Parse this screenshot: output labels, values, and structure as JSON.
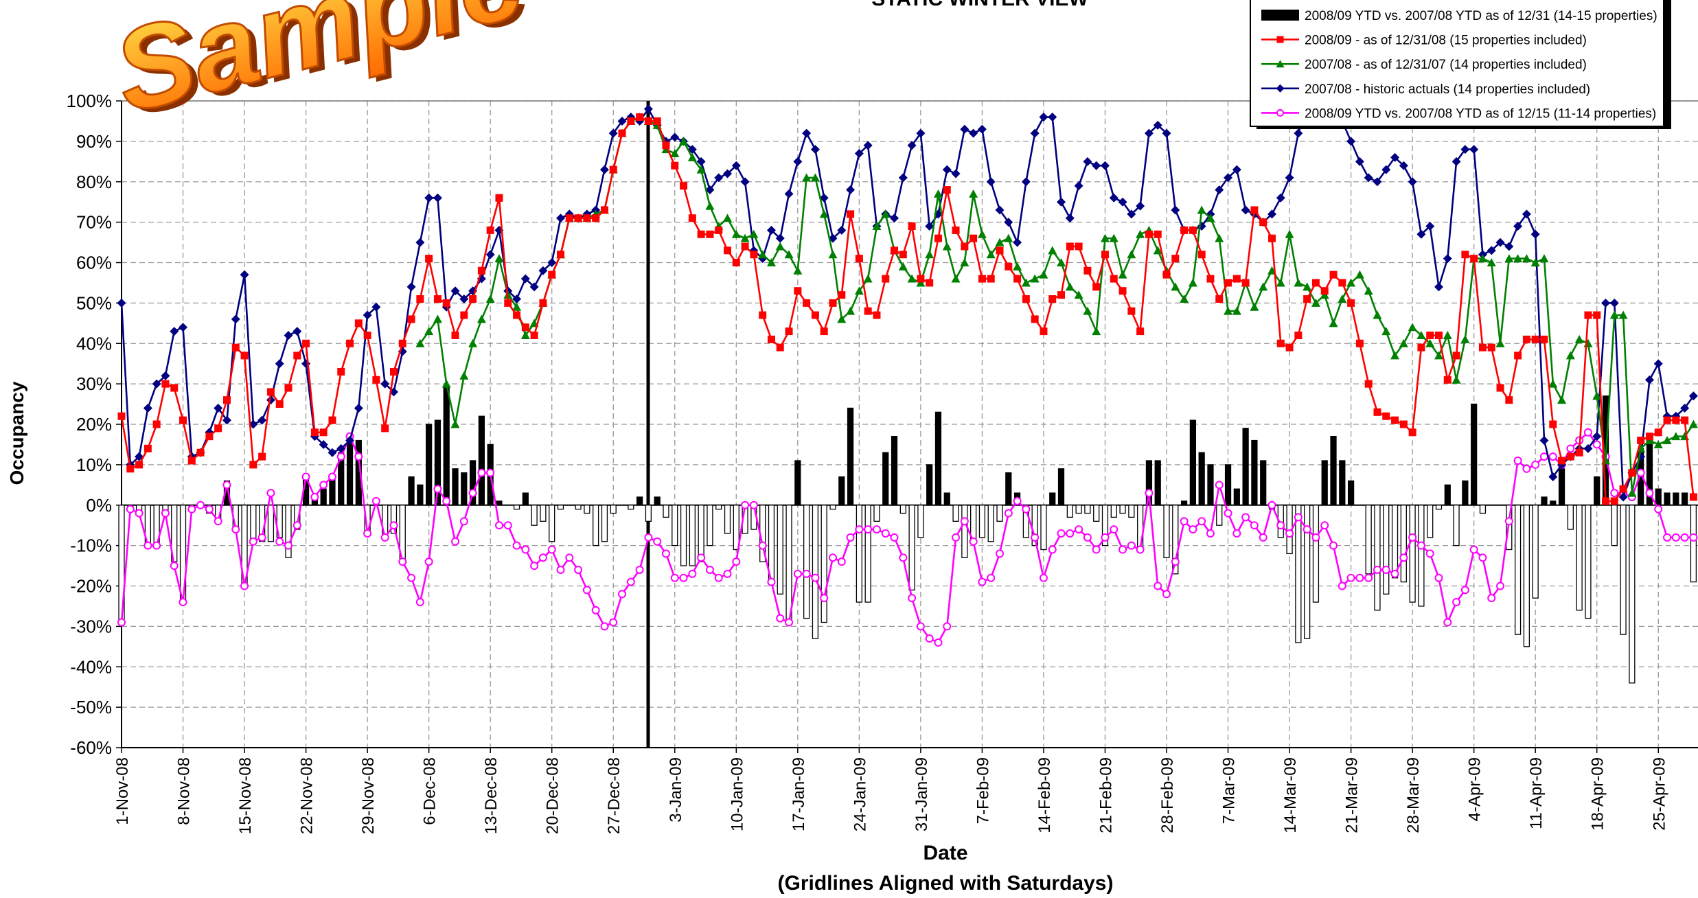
{
  "chart_data": {
    "type": "combo",
    "title": "STATIC WINTER VIEW",
    "watermark": "Sample",
    "y_label": "Occupancy",
    "x_label": "Date",
    "x_sublabel": "(Gridlines Aligned with Saturdays)",
    "ylim": [
      -60,
      100
    ],
    "yticks": [
      {
        "value": -60,
        "label": "-60%"
      },
      {
        "value": -50,
        "label": "-50%"
      },
      {
        "value": -40,
        "label": "-40%"
      },
      {
        "value": -30,
        "label": "-30%"
      },
      {
        "value": -20,
        "label": "-20%"
      },
      {
        "value": -10,
        "label": "-10%"
      },
      {
        "value": 0,
        "label": "0%"
      },
      {
        "value": 10,
        "label": "10%"
      },
      {
        "value": 20,
        "label": "20%"
      },
      {
        "value": 30,
        "label": "30%"
      },
      {
        "value": 40,
        "label": "40%"
      },
      {
        "value": 50,
        "label": "50%"
      },
      {
        "value": 60,
        "label": "60%"
      },
      {
        "value": 70,
        "label": "70%"
      },
      {
        "value": 80,
        "label": "80%"
      },
      {
        "value": 90,
        "label": "90%"
      },
      {
        "value": 100,
        "label": "100%"
      }
    ],
    "grid": true,
    "legend": "top-right",
    "categories": [
      "1-Nov-08",
      null,
      null,
      null,
      null,
      null,
      null,
      "8-Nov-08",
      null,
      null,
      null,
      null,
      null,
      null,
      "15-Nov-08",
      null,
      null,
      null,
      null,
      null,
      null,
      "22-Nov-08",
      null,
      null,
      null,
      null,
      null,
      null,
      "29-Nov-08",
      null,
      null,
      null,
      null,
      null,
      null,
      "6-Dec-08",
      null,
      null,
      null,
      null,
      null,
      null,
      "13-Dec-08",
      null,
      null,
      null,
      null,
      null,
      null,
      "20-Dec-08",
      null,
      null,
      null,
      null,
      null,
      null,
      "27-Dec-08",
      null,
      null,
      null,
      null,
      null,
      null,
      "3-Jan-09",
      null,
      null,
      null,
      null,
      null,
      null,
      "10-Jan-09",
      null,
      null,
      null,
      null,
      null,
      null,
      "17-Jan-09",
      null,
      null,
      null,
      null,
      null,
      null,
      "24-Jan-09",
      null,
      null,
      null,
      null,
      null,
      null,
      "31-Jan-09",
      null,
      null,
      null,
      null,
      null,
      null,
      "7-Feb-09",
      null,
      null,
      null,
      null,
      null,
      null,
      "14-Feb-09",
      null,
      null,
      null,
      null,
      null,
      null,
      "21-Feb-09",
      null,
      null,
      null,
      null,
      null,
      null,
      "28-Feb-09",
      null,
      null,
      null,
      null,
      null,
      null,
      "7-Mar-09",
      null,
      null,
      null,
      null,
      null,
      null,
      "14-Mar-09",
      null,
      null,
      null,
      null,
      null,
      null,
      "21-Mar-09",
      null,
      null,
      null,
      null,
      null,
      null,
      "28-Mar-09",
      null,
      null,
      null,
      null,
      null,
      null,
      "4-Apr-09",
      null,
      null,
      null,
      null,
      null,
      null,
      "11-Apr-09",
      null,
      null,
      null,
      null,
      null,
      null,
      "18-Apr-09",
      null,
      null,
      null,
      null,
      null,
      null,
      "25-Apr-09",
      null,
      null,
      null,
      null
    ],
    "series": [
      {
        "name": "2008/09 YTD vs. 2007/08 YTD as of 12/31 (14-15 properties)",
        "type": "bar",
        "color": "#000000",
        "invert_if_negative": true,
        "values": [
          -29,
          -1,
          -2,
          -10,
          -10,
          -2,
          -14,
          -24,
          -1,
          0,
          -2,
          -4,
          6,
          -6,
          -20,
          -9,
          -9,
          -9,
          -8,
          -13,
          -6,
          7,
          2,
          4,
          7,
          13,
          17,
          16,
          -7,
          0,
          -8,
          -7,
          -14,
          7,
          5,
          20,
          21,
          29,
          9,
          8,
          11,
          22,
          15,
          1,
          0,
          -1,
          3,
          -5,
          -4,
          -9,
          -1,
          0,
          -1,
          -2,
          -10,
          -9,
          -2,
          0,
          -1,
          2,
          -4,
          2,
          -3,
          -10,
          -15,
          -15,
          -14,
          -10,
          -1,
          -7,
          -11,
          -7,
          -6,
          -14,
          -19,
          -22,
          -29,
          11,
          -28,
          -33,
          -29,
          -1,
          7,
          24,
          -24,
          -24,
          -4,
          13,
          17,
          -2,
          -21,
          -8,
          10,
          23,
          3,
          -4,
          -13,
          -9,
          -8,
          -9,
          -4,
          8,
          3,
          -8,
          -10,
          -11,
          3,
          9,
          -3,
          -2,
          -2,
          -4,
          -10,
          -3,
          -2,
          -3,
          -11,
          11,
          11,
          -13,
          -17,
          1,
          21,
          13,
          10,
          -5,
          10,
          4,
          19,
          16,
          11,
          -1,
          -8,
          -12,
          -34,
          -33,
          -24,
          11,
          17,
          11,
          6,
          0,
          -17,
          -26,
          -22,
          -18,
          -19,
          -24,
          -25,
          -8,
          -1,
          5,
          -10,
          6,
          25,
          -2,
          0,
          0,
          -11,
          -32,
          -35,
          -23,
          2,
          1,
          9,
          -6,
          -26,
          -28,
          7,
          27,
          -10,
          -32,
          -44,
          14,
          17,
          4,
          3,
          3,
          3,
          -19
        ]
      },
      {
        "name": "2008/09 - as of 12/31/08 (15 properties included)",
        "type": "line",
        "marker": "square",
        "color": "#ff0000",
        "values": [
          22,
          9,
          10,
          14,
          20,
          30,
          29,
          21,
          11,
          13,
          17,
          19,
          26,
          39,
          37,
          10,
          12,
          28,
          25,
          29,
          37,
          40,
          18,
          18,
          21,
          33,
          40,
          45,
          42,
          31,
          19,
          33,
          40,
          46,
          51,
          61,
          51,
          50,
          42,
          47,
          51,
          58,
          68,
          76,
          50,
          47,
          44,
          42,
          50,
          57,
          62,
          71,
          71,
          71,
          71,
          73,
          83,
          92,
          95,
          96,
          95,
          95,
          89,
          84,
          79,
          71,
          67,
          67,
          68,
          63,
          60,
          64,
          62,
          47,
          41,
          39,
          43,
          53,
          50,
          47,
          43,
          50,
          52,
          72,
          61,
          48,
          47,
          56,
          63,
          62,
          69,
          56,
          55,
          66,
          78,
          68,
          64,
          66,
          56,
          56,
          63,
          59,
          56,
          51,
          46,
          43,
          51,
          52,
          64,
          64,
          58,
          54,
          62,
          56,
          53,
          48,
          43,
          67,
          67,
          57,
          61,
          68,
          68,
          62,
          56,
          51,
          55,
          56,
          55,
          73,
          70,
          66,
          40,
          39,
          42,
          51,
          55,
          53,
          57,
          55,
          50,
          40,
          30,
          23,
          22,
          21,
          20,
          18,
          39,
          42,
          42,
          31,
          37,
          62,
          61,
          39,
          39,
          29,
          26,
          37,
          41,
          41,
          41,
          20,
          11,
          12,
          13,
          47,
          47,
          1,
          1,
          4,
          8,
          16,
          17,
          18,
          21,
          21,
          21,
          2
        ]
      },
      {
        "name": "2007/08 - as of 12/31/07 (14 properties included)",
        "type": "line",
        "marker": "triangle",
        "color": "#008000",
        "values": [
          null,
          null,
          null,
          null,
          null,
          null,
          null,
          null,
          null,
          null,
          null,
          null,
          null,
          null,
          null,
          null,
          null,
          null,
          null,
          null,
          null,
          null,
          null,
          null,
          null,
          null,
          null,
          null,
          null,
          null,
          null,
          null,
          null,
          null,
          40,
          43,
          46,
          30,
          20,
          32,
          40,
          46,
          51,
          61,
          52,
          49,
          42,
          45,
          50,
          57,
          62,
          71,
          71,
          71,
          72,
          73,
          83,
          92,
          95,
          96,
          95,
          94,
          88,
          87,
          90,
          86,
          83,
          74,
          69,
          71,
          67,
          66,
          67,
          62,
          60,
          64,
          62,
          58,
          81,
          81,
          72,
          62,
          46,
          48,
          53,
          56,
          69,
          72,
          63,
          59,
          56,
          55,
          62,
          77,
          64,
          56,
          60,
          77,
          67,
          62,
          65,
          66,
          59,
          55,
          56,
          57,
          63,
          60,
          54,
          52,
          48,
          43,
          66,
          66,
          57,
          62,
          67,
          68,
          63,
          58,
          54,
          51,
          55,
          73,
          71,
          66,
          48,
          48,
          55,
          49,
          54,
          58,
          55,
          67,
          55,
          54,
          50,
          52,
          45,
          51,
          55,
          57,
          53,
          47,
          43,
          37,
          40,
          44,
          42,
          40,
          37,
          42,
          31,
          41,
          61,
          61,
          60,
          40,
          61,
          61,
          61,
          60,
          61,
          30,
          26,
          37,
          41,
          40,
          27,
          11,
          47,
          47,
          3,
          14,
          16,
          15,
          16,
          17,
          17,
          20
        ]
      },
      {
        "name": "2007/08 - historic actuals (14 properties included)",
        "type": "line",
        "marker": "diamond",
        "color": "#000080",
        "values": [
          50,
          10,
          12,
          24,
          30,
          32,
          43,
          44,
          12,
          13,
          18,
          24,
          21,
          46,
          57,
          20,
          21,
          26,
          35,
          42,
          43,
          35,
          17,
          15,
          13,
          14,
          16,
          24,
          47,
          49,
          30,
          28,
          38,
          54,
          65,
          76,
          76,
          49,
          53,
          51,
          53,
          56,
          62,
          68,
          53,
          51,
          56,
          54,
          58,
          60,
          71,
          72,
          71,
          72,
          73,
          83,
          92,
          95,
          96,
          95,
          98,
          94,
          90,
          91,
          90,
          88,
          85,
          78,
          81,
          82,
          84,
          80,
          63,
          61,
          68,
          66,
          77,
          85,
          92,
          88,
          76,
          66,
          68,
          78,
          87,
          89,
          69,
          72,
          71,
          81,
          89,
          92,
          69,
          72,
          83,
          82,
          93,
          92,
          93,
          80,
          73,
          70,
          65,
          80,
          92,
          96,
          96,
          75,
          71,
          79,
          85,
          84,
          84,
          76,
          75,
          72,
          74,
          92,
          94,
          92,
          73,
          68,
          68,
          69,
          72,
          78,
          81,
          83,
          73,
          72,
          70,
          72,
          76,
          81,
          92,
          99,
          100,
          100,
          99,
          95,
          90,
          85,
          81,
          80,
          83,
          86,
          84,
          80,
          67,
          69,
          54,
          61,
          85,
          88,
          88,
          62,
          63,
          65,
          64,
          69,
          72,
          67,
          16,
          7,
          10,
          12,
          14,
          14,
          17,
          50,
          50,
          2,
          8,
          12,
          31,
          35,
          22,
          22,
          24,
          27
        ]
      },
      {
        "name": "2008/09 YTD vs. 2007/08 YTD as of 12/15 (11-14 properties)",
        "type": "line",
        "marker": "circle",
        "color": "#ff00ff",
        "values": [
          -29,
          -1,
          -2,
          -10,
          -10,
          -2,
          -15,
          -24,
          -1,
          0,
          -1,
          -4,
          5,
          -6,
          -20,
          -9,
          -8,
          3,
          -9,
          -10,
          -5,
          7,
          2,
          5,
          7,
          12,
          17,
          12,
          -7,
          1,
          -8,
          -5,
          -14,
          -18,
          -24,
          -14,
          4,
          1,
          -9,
          -4,
          3,
          8,
          8,
          -5,
          -5,
          -10,
          -11,
          -15,
          -13,
          -11,
          -16,
          -13,
          -16,
          -21,
          -26,
          -30,
          -29,
          -22,
          -19,
          -16,
          -8,
          -9,
          -12,
          -18,
          -18,
          -17,
          -13,
          -16,
          -18,
          -17,
          -14,
          0,
          0,
          -10,
          -19,
          -28,
          -29,
          -17,
          -17,
          -18,
          -23,
          -13,
          -14,
          -8,
          -6,
          -6,
          -6,
          -7,
          -8,
          -13,
          -23,
          -30,
          -33,
          -34,
          -30,
          -8,
          -4,
          -9,
          -19,
          -18,
          -12,
          -2,
          1,
          -1,
          -8,
          -18,
          -11,
          -7,
          -7,
          -6,
          -8,
          -11,
          -8,
          -6,
          -11,
          -10,
          -11,
          3,
          -20,
          -22,
          -14,
          -4,
          -6,
          -4,
          -7,
          5,
          -2,
          -7,
          -3,
          -5,
          -8,
          0,
          -5,
          -7,
          -3,
          -6,
          -8,
          -5,
          -10,
          -20,
          -18,
          -18,
          -18,
          -16,
          -16,
          -17,
          -13,
          -8,
          -10,
          -12,
          -18,
          -29,
          -24,
          -21,
          -11,
          -13,
          -23,
          -20,
          -4,
          11,
          9,
          10,
          12,
          12,
          10,
          14,
          16,
          18,
          15,
          12,
          3,
          3,
          2,
          8,
          3,
          -1,
          -8,
          -8,
          -8,
          -8
        ]
      }
    ]
  }
}
